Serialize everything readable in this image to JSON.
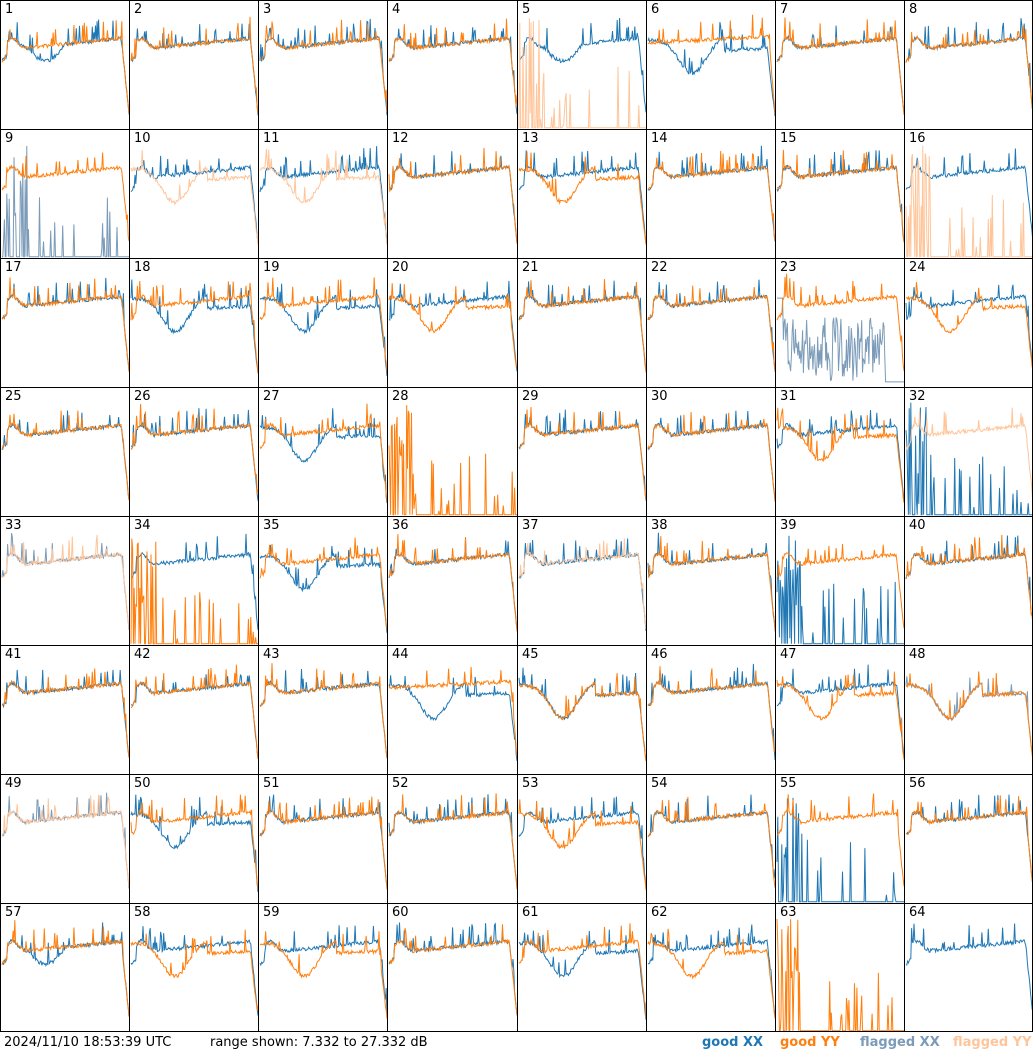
{
  "footer": {
    "timestamp": "2024/11/10 18:53:39 UTC",
    "range_text": "range shown: 7.332 to 27.332 dB"
  },
  "legend": [
    {
      "label": "good XX",
      "color": "#1f77b4"
    },
    {
      "label": "good YY",
      "color": "#ff7f0e"
    },
    {
      "label": "flagged XX",
      "color": "#7b9bb8"
    },
    {
      "label": "flagged YY",
      "color": "#ffc59a"
    }
  ],
  "chart_data": {
    "type": "line",
    "grid": "8x8 small multiples",
    "yrange_db": [
      7.332,
      27.332
    ],
    "panels": [
      {
        "id": "1",
        "xx": "good",
        "yy": "good",
        "xx_shape": "bandpass_deep",
        "yy_shape": "bandpass"
      },
      {
        "id": "2",
        "xx": "good",
        "yy": "good",
        "xx_shape": "bandpass",
        "yy_shape": "bandpass"
      },
      {
        "id": "3",
        "xx": "good",
        "yy": "good",
        "xx_shape": "bandpass",
        "yy_shape": "bandpass"
      },
      {
        "id": "4",
        "xx": "good",
        "yy": "good",
        "xx_shape": "bandpass",
        "yy_shape": "bandpass"
      },
      {
        "id": "5",
        "xx": "good",
        "yy": "flagged",
        "xx_shape": "bandpass_deep",
        "yy_shape": "spiky_low"
      },
      {
        "id": "6",
        "xx": "good",
        "yy": "good",
        "xx_shape": "dip",
        "yy_shape": "flat_high"
      },
      {
        "id": "7",
        "xx": "good",
        "yy": "good",
        "xx_shape": "bandpass",
        "yy_shape": "bandpass"
      },
      {
        "id": "8",
        "xx": "good",
        "yy": "good",
        "xx_shape": "bandpass",
        "yy_shape": "bandpass"
      },
      {
        "id": "9",
        "xx": "flagged",
        "yy": "good",
        "xx_shape": "spiky_low",
        "yy_shape": "bandpass"
      },
      {
        "id": "10",
        "xx": "good",
        "yy": "flagged",
        "xx_shape": "bandpass",
        "yy_shape": "dip"
      },
      {
        "id": "11",
        "xx": "good",
        "yy": "flagged",
        "xx_shape": "bandpass",
        "yy_shape": "dip"
      },
      {
        "id": "12",
        "xx": "good",
        "yy": "good",
        "xx_shape": "bandpass",
        "yy_shape": "bandpass"
      },
      {
        "id": "13",
        "xx": "good",
        "yy": "good",
        "xx_shape": "bandpass",
        "yy_shape": "dip"
      },
      {
        "id": "14",
        "xx": "good",
        "yy": "good",
        "xx_shape": "bandpass",
        "yy_shape": "bandpass"
      },
      {
        "id": "15",
        "xx": "good",
        "yy": "good",
        "xx_shape": "bandpass",
        "yy_shape": "bandpass"
      },
      {
        "id": "16",
        "xx": "good",
        "yy": "flagged",
        "xx_shape": "bandpass",
        "yy_shape": "spiky_low"
      },
      {
        "id": "17",
        "xx": "good",
        "yy": "good",
        "xx_shape": "bandpass",
        "yy_shape": "bandpass"
      },
      {
        "id": "18",
        "xx": "good",
        "yy": "good",
        "xx_shape": "dip",
        "yy_shape": "bandpass"
      },
      {
        "id": "19",
        "xx": "good",
        "yy": "good",
        "xx_shape": "dip",
        "yy_shape": "bandpass"
      },
      {
        "id": "20",
        "xx": "good",
        "yy": "good",
        "xx_shape": "bandpass",
        "yy_shape": "dip"
      },
      {
        "id": "21",
        "xx": "good",
        "yy": "good",
        "xx_shape": "bandpass",
        "yy_shape": "bandpass"
      },
      {
        "id": "22",
        "xx": "good",
        "yy": "good",
        "xx_shape": "bandpass",
        "yy_shape": "bandpass"
      },
      {
        "id": "23",
        "xx": "flagged",
        "yy": "good",
        "xx_shape": "noise",
        "yy_shape": "bandpass"
      },
      {
        "id": "24",
        "xx": "good",
        "yy": "good",
        "xx_shape": "bandpass",
        "yy_shape": "dip"
      },
      {
        "id": "25",
        "xx": "good",
        "yy": "good",
        "xx_shape": "bandpass",
        "yy_shape": "bandpass"
      },
      {
        "id": "26",
        "xx": "good",
        "yy": "good",
        "xx_shape": "bandpass",
        "yy_shape": "bandpass"
      },
      {
        "id": "27",
        "xx": "good",
        "yy": "good",
        "xx_shape": "dip",
        "yy_shape": "bandpass"
      },
      {
        "id": "28",
        "xx": "none",
        "yy": "good",
        "xx_shape": "none",
        "yy_shape": "spiky_low"
      },
      {
        "id": "29",
        "xx": "good",
        "yy": "good",
        "xx_shape": "bandpass",
        "yy_shape": "bandpass"
      },
      {
        "id": "30",
        "xx": "good",
        "yy": "good",
        "xx_shape": "bandpass",
        "yy_shape": "bandpass"
      },
      {
        "id": "31",
        "xx": "good",
        "yy": "good",
        "xx_shape": "bandpass",
        "yy_shape": "dip"
      },
      {
        "id": "32",
        "xx": "good",
        "yy": "flagged",
        "xx_shape": "spiky_low",
        "yy_shape": "bandpass"
      },
      {
        "id": "33",
        "xx": "flagged",
        "yy": "flagged",
        "xx_shape": "bandpass",
        "yy_shape": "bandpass"
      },
      {
        "id": "34",
        "xx": "good",
        "yy": "good",
        "xx_shape": "bandpass",
        "yy_shape": "spiky_low"
      },
      {
        "id": "35",
        "xx": "good",
        "yy": "good",
        "xx_shape": "dip",
        "yy_shape": "bandpass"
      },
      {
        "id": "36",
        "xx": "good",
        "yy": "good",
        "xx_shape": "bandpass",
        "yy_shape": "bandpass"
      },
      {
        "id": "37",
        "xx": "good",
        "yy": "flagged",
        "xx_shape": "bandpass",
        "yy_shape": "bandpass"
      },
      {
        "id": "38",
        "xx": "good",
        "yy": "good",
        "xx_shape": "bandpass",
        "yy_shape": "bandpass"
      },
      {
        "id": "39",
        "xx": "good",
        "yy": "good",
        "xx_shape": "spiky_low",
        "yy_shape": "bandpass"
      },
      {
        "id": "40",
        "xx": "good",
        "yy": "good",
        "xx_shape": "bandpass",
        "yy_shape": "bandpass"
      },
      {
        "id": "41",
        "xx": "good",
        "yy": "good",
        "xx_shape": "bandpass",
        "yy_shape": "bandpass"
      },
      {
        "id": "42",
        "xx": "good",
        "yy": "good",
        "xx_shape": "bandpass",
        "yy_shape": "bandpass"
      },
      {
        "id": "43",
        "xx": "good",
        "yy": "good",
        "xx_shape": "bandpass",
        "yy_shape": "bandpass"
      },
      {
        "id": "44",
        "xx": "good",
        "yy": "good",
        "xx_shape": "dip",
        "yy_shape": "flat_high"
      },
      {
        "id": "45",
        "xx": "good",
        "yy": "good",
        "xx_shape": "dip",
        "yy_shape": "dip"
      },
      {
        "id": "46",
        "xx": "good",
        "yy": "good",
        "xx_shape": "bandpass",
        "yy_shape": "bandpass"
      },
      {
        "id": "47",
        "xx": "good",
        "yy": "good",
        "xx_shape": "bandpass",
        "yy_shape": "dip"
      },
      {
        "id": "48",
        "xx": "flagged",
        "yy": "good",
        "xx_shape": "dip",
        "yy_shape": "dip"
      },
      {
        "id": "49",
        "xx": "flagged",
        "yy": "flagged",
        "xx_shape": "bandpass",
        "yy_shape": "bandpass"
      },
      {
        "id": "50",
        "xx": "good",
        "yy": "good",
        "xx_shape": "dip",
        "yy_shape": "bandpass"
      },
      {
        "id": "51",
        "xx": "good",
        "yy": "good",
        "xx_shape": "bandpass",
        "yy_shape": "bandpass"
      },
      {
        "id": "52",
        "xx": "good",
        "yy": "good",
        "xx_shape": "bandpass",
        "yy_shape": "bandpass"
      },
      {
        "id": "53",
        "xx": "good",
        "yy": "good",
        "xx_shape": "bandpass",
        "yy_shape": "dip"
      },
      {
        "id": "54",
        "xx": "good",
        "yy": "good",
        "xx_shape": "bandpass",
        "yy_shape": "bandpass"
      },
      {
        "id": "55",
        "xx": "good",
        "yy": "good",
        "xx_shape": "spiky_low",
        "yy_shape": "bandpass"
      },
      {
        "id": "56",
        "xx": "good",
        "yy": "good",
        "xx_shape": "bandpass",
        "yy_shape": "bandpass"
      },
      {
        "id": "57",
        "xx": "good",
        "yy": "good",
        "xx_shape": "bandpass_deep",
        "yy_shape": "bandpass"
      },
      {
        "id": "58",
        "xx": "good",
        "yy": "good",
        "xx_shape": "bandpass",
        "yy_shape": "dip"
      },
      {
        "id": "59",
        "xx": "good",
        "yy": "good",
        "xx_shape": "bandpass",
        "yy_shape": "dip"
      },
      {
        "id": "60",
        "xx": "good",
        "yy": "good",
        "xx_shape": "bandpass",
        "yy_shape": "bandpass"
      },
      {
        "id": "61",
        "xx": "good",
        "yy": "good",
        "xx_shape": "dip",
        "yy_shape": "bandpass"
      },
      {
        "id": "62",
        "xx": "good",
        "yy": "good",
        "xx_shape": "bandpass",
        "yy_shape": "dip"
      },
      {
        "id": "63",
        "xx": "none",
        "yy": "good",
        "xx_shape": "none",
        "yy_shape": "spiky_low"
      },
      {
        "id": "64",
        "xx": "good",
        "yy": "none",
        "xx_shape": "bandpass",
        "yy_shape": "none"
      }
    ]
  }
}
